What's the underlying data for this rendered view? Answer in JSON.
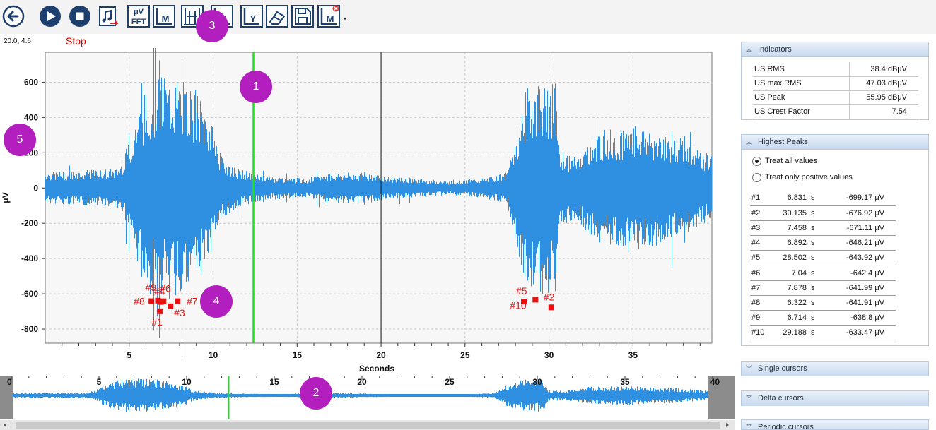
{
  "toolbar": {
    "buttons": [
      {
        "name": "back-button",
        "icon": "arrow-left-circle-icon"
      },
      {
        "name": "play-button",
        "icon": "play-circle-icon"
      },
      {
        "name": "stop-button",
        "icon": "stop-circle-icon"
      },
      {
        "name": "export-audio-button",
        "icon": "music-export-icon"
      },
      {
        "name": "fft-button",
        "icon": "fft-icon",
        "label_top": "μV",
        "label_bottom": "FFT"
      },
      {
        "name": "marker-button",
        "icon": "marker-m-icon",
        "label": "M"
      },
      {
        "name": "cursors-button",
        "icon": "cursor-lines-icon"
      },
      {
        "name": "peaks-button",
        "icon": "peak-p-icon",
        "label": "P"
      },
      {
        "name": "y-scale-button",
        "icon": "y-axis-icon",
        "label": "Y"
      },
      {
        "name": "eraser-button",
        "icon": "eraser-icon"
      },
      {
        "name": "save-button",
        "icon": "floppy-disk-icon"
      },
      {
        "name": "remove-marker-button",
        "icon": "marker-remove-icon",
        "label": "M"
      }
    ]
  },
  "coords": "20.0, 4.6",
  "status": "Stop",
  "chart_data": [
    {
      "type": "line",
      "name": "main-signal",
      "xlabel": "Seconds",
      "ylabel": "μV",
      "xlim": [
        0,
        39.7
      ],
      "ylim": [
        -880,
        770
      ],
      "x_ticks": [
        5,
        10,
        15,
        20,
        25,
        30,
        35
      ],
      "y_ticks": [
        600,
        400,
        200,
        0,
        -200,
        -400,
        -600,
        -800
      ],
      "green_cursor_x": 12.4,
      "black_cursor_x": 20.0,
      "grid": true,
      "color": "#2f8fe0",
      "envelope": [
        {
          "t": 0,
          "amp": 90
        },
        {
          "t": 4.3,
          "amp": 110
        },
        {
          "t": 4.8,
          "amp": 200
        },
        {
          "t": 5.5,
          "amp": 450
        },
        {
          "t": 6.3,
          "amp": 620
        },
        {
          "t": 7.0,
          "amp": 640
        },
        {
          "t": 8.0,
          "amp": 620
        },
        {
          "t": 9.0,
          "amp": 560
        },
        {
          "t": 9.8,
          "amp": 400
        },
        {
          "t": 10.5,
          "amp": 180
        },
        {
          "t": 11.5,
          "amp": 110
        },
        {
          "t": 13.0,
          "amp": 70
        },
        {
          "t": 15.5,
          "amp": 55
        },
        {
          "t": 17.0,
          "amp": 85
        },
        {
          "t": 19.0,
          "amp": 90
        },
        {
          "t": 20.5,
          "amp": 65
        },
        {
          "t": 24.0,
          "amp": 40
        },
        {
          "t": 26.0,
          "amp": 55
        },
        {
          "t": 27.5,
          "amp": 90
        },
        {
          "t": 28.0,
          "amp": 300
        },
        {
          "t": 28.7,
          "amp": 580
        },
        {
          "t": 29.8,
          "amp": 620
        },
        {
          "t": 30.4,
          "amp": 600
        },
        {
          "t": 30.6,
          "amp": 220
        },
        {
          "t": 31.5,
          "amp": 180
        },
        {
          "t": 33.0,
          "amp": 330
        },
        {
          "t": 35.0,
          "amp": 360
        },
        {
          "t": 36.5,
          "amp": 330
        },
        {
          "t": 38.0,
          "amp": 280
        },
        {
          "t": 39.7,
          "amp": 180
        }
      ],
      "peak_markers": [
        {
          "label": "#1",
          "x": 6.831,
          "y": -699.17
        },
        {
          "label": "#2",
          "x": 30.135,
          "y": -676.92
        },
        {
          "label": "#3",
          "x": 7.458,
          "y": -671.11
        },
        {
          "label": "#4",
          "x": 6.892,
          "y": -646.21
        },
        {
          "label": "#5",
          "x": 28.502,
          "y": -643.92
        },
        {
          "label": "#6",
          "x": 7.04,
          "y": -642.4
        },
        {
          "label": "#7",
          "x": 7.878,
          "y": -641.99
        },
        {
          "label": "#8",
          "x": 6.322,
          "y": -641.91
        },
        {
          "label": "#9",
          "x": 6.714,
          "y": -638.8
        },
        {
          "label": "#10",
          "x": 29.188,
          "y": -633.47
        }
      ]
    },
    {
      "type": "line",
      "name": "overview-signal",
      "xlim": [
        0,
        40
      ],
      "x_ticks": [
        0,
        5,
        10,
        15,
        20,
        25,
        30,
        35,
        40
      ],
      "green_cursor_x": 12.4,
      "color": "#2f8fe0"
    }
  ],
  "badges": [
    "1",
    "2",
    "3",
    "4",
    "5"
  ],
  "indicators": {
    "title": "Indicators",
    "rows": [
      {
        "label": "US RMS",
        "value": "38.4 dBμV"
      },
      {
        "label": "US max RMS",
        "value": "47.03 dBμV"
      },
      {
        "label": "US Peak",
        "value": "55.95 dBμV"
      },
      {
        "label": "US Crest Factor",
        "value": "7.54"
      }
    ]
  },
  "highest_peaks": {
    "title": "Highest Peaks",
    "option_all": "Treat all values",
    "option_positive": "Treat only positive values",
    "selected": "all",
    "rows": [
      {
        "n": "#1",
        "t": "6.831",
        "u": "s",
        "v": "-699.17 μV"
      },
      {
        "n": "#2",
        "t": "30.135",
        "u": "s",
        "v": "-676.92 μV"
      },
      {
        "n": "#3",
        "t": "7.458",
        "u": "s",
        "v": "-671.11 μV"
      },
      {
        "n": "#4",
        "t": "6.892",
        "u": "s",
        "v": "-646.21 μV"
      },
      {
        "n": "#5",
        "t": "28.502",
        "u": "s",
        "v": "-643.92 μV"
      },
      {
        "n": "#6",
        "t": "7.04",
        "u": "s",
        "v": "-642.4 μV"
      },
      {
        "n": "#7",
        "t": "7.878",
        "u": "s",
        "v": "-641.99 μV"
      },
      {
        "n": "#8",
        "t": "6.322",
        "u": "s",
        "v": "-641.91 μV"
      },
      {
        "n": "#9",
        "t": "6.714",
        "u": "s",
        "v": "-638.8 μV"
      },
      {
        "n": "#10",
        "t": "29.188",
        "u": "s",
        "v": "-633.47 μV"
      }
    ]
  },
  "collapsed_panels": [
    "Single cursors",
    "Delta cursors",
    "Periodic cursors"
  ]
}
